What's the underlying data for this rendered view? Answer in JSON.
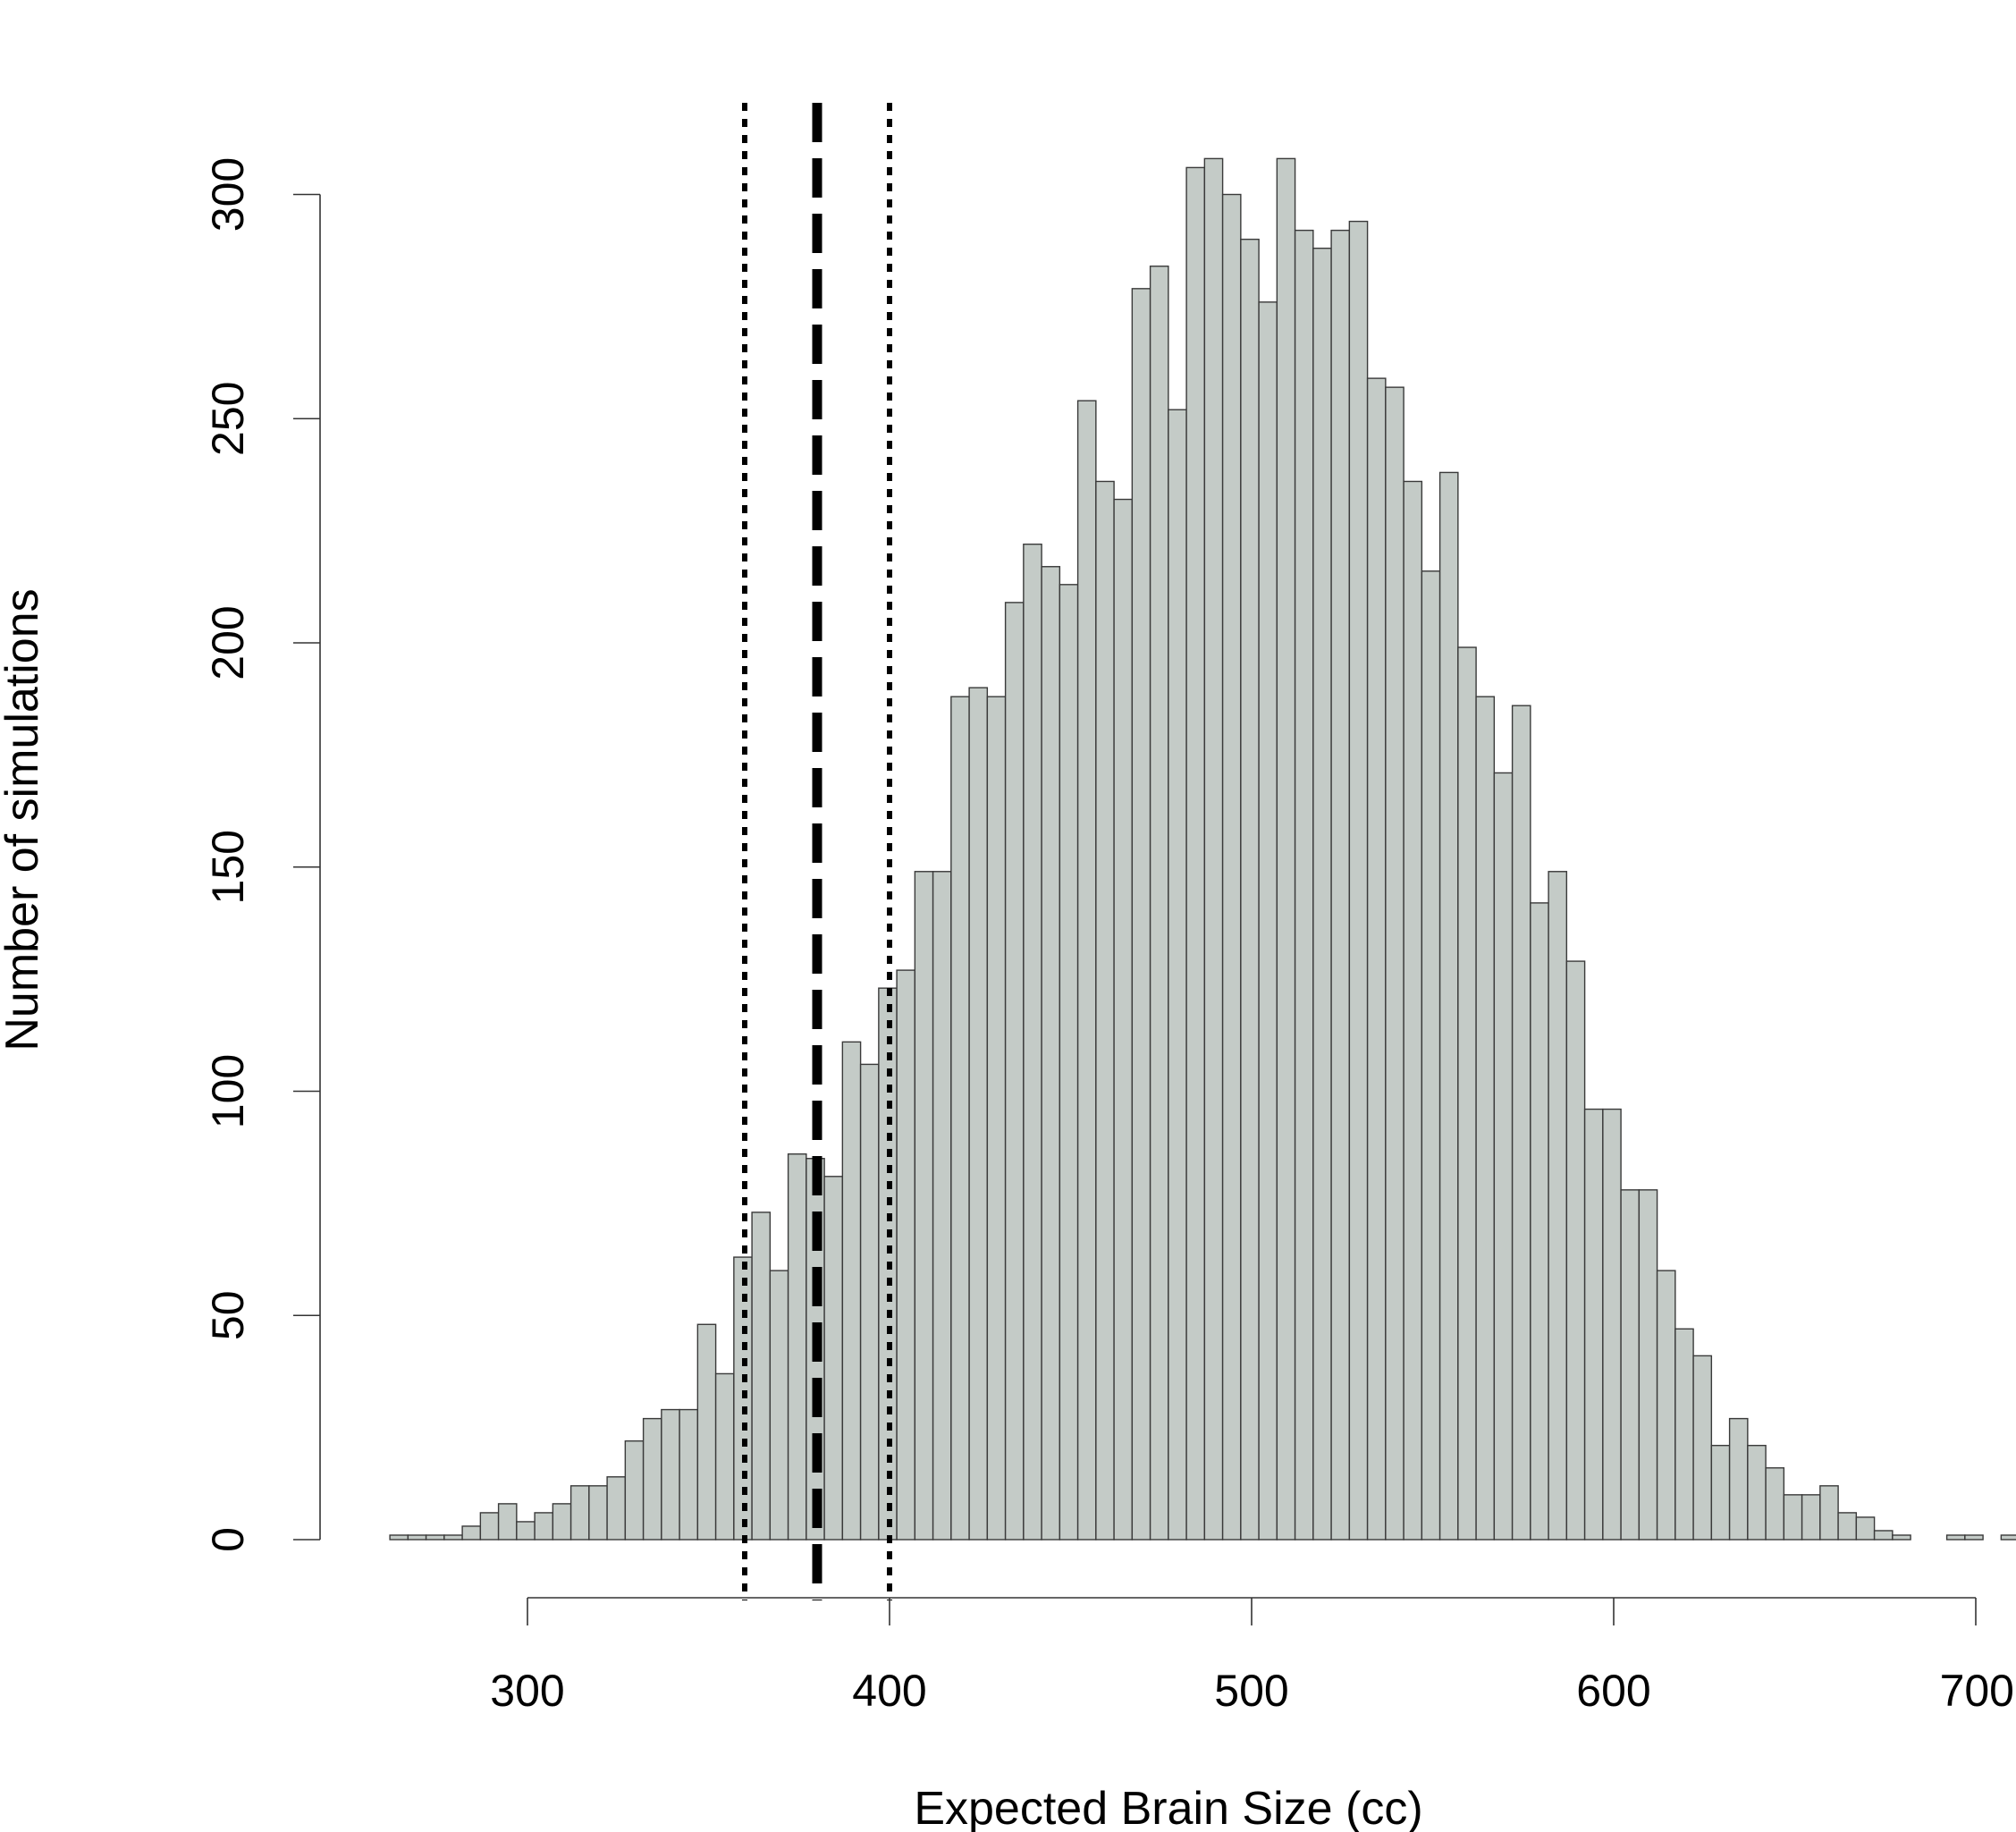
{
  "chart_data": {
    "type": "bar",
    "subtype": "histogram",
    "xlabel": "Expected Brain Size (cc)",
    "ylabel": "Number of simulations",
    "xlim": [
      260,
      700
    ],
    "ylim": [
      0,
      300
    ],
    "x_ticks": [
      "300",
      "400",
      "500",
      "600",
      "700"
    ],
    "y_ticks": [
      "0",
      "50",
      "100",
      "150",
      "200",
      "250",
      "300"
    ],
    "bin_start": 262,
    "bin_width": 5,
    "values": [
      1,
      1,
      1,
      1,
      3,
      6,
      8,
      4,
      6,
      8,
      12,
      12,
      14,
      22,
      27,
      29,
      29,
      48,
      37,
      63,
      73,
      60,
      86,
      85,
      81,
      111,
      106,
      123,
      127,
      149,
      149,
      188,
      190,
      188,
      209,
      222,
      217,
      213,
      254,
      236,
      232,
      279,
      284,
      252,
      306,
      308,
      300,
      290,
      276,
      308,
      292,
      288,
      292,
      294,
      259,
      257,
      236,
      216,
      238,
      199,
      188,
      171,
      186,
      142,
      149,
      129,
      96,
      96,
      78,
      78,
      60,
      47,
      41,
      21,
      27,
      21,
      16,
      10,
      10,
      12,
      6,
      5,
      2,
      1,
      0,
      0,
      1,
      1,
      0,
      1
    ],
    "bar_fill": "#c4cbc7",
    "bar_stroke": "#3a3a3a",
    "reference_lines": [
      {
        "x": 360,
        "style": "dotted"
      },
      {
        "x": 380,
        "style": "dashed"
      },
      {
        "x": 400,
        "style": "dotted"
      }
    ],
    "grid": false,
    "legend": "none"
  }
}
